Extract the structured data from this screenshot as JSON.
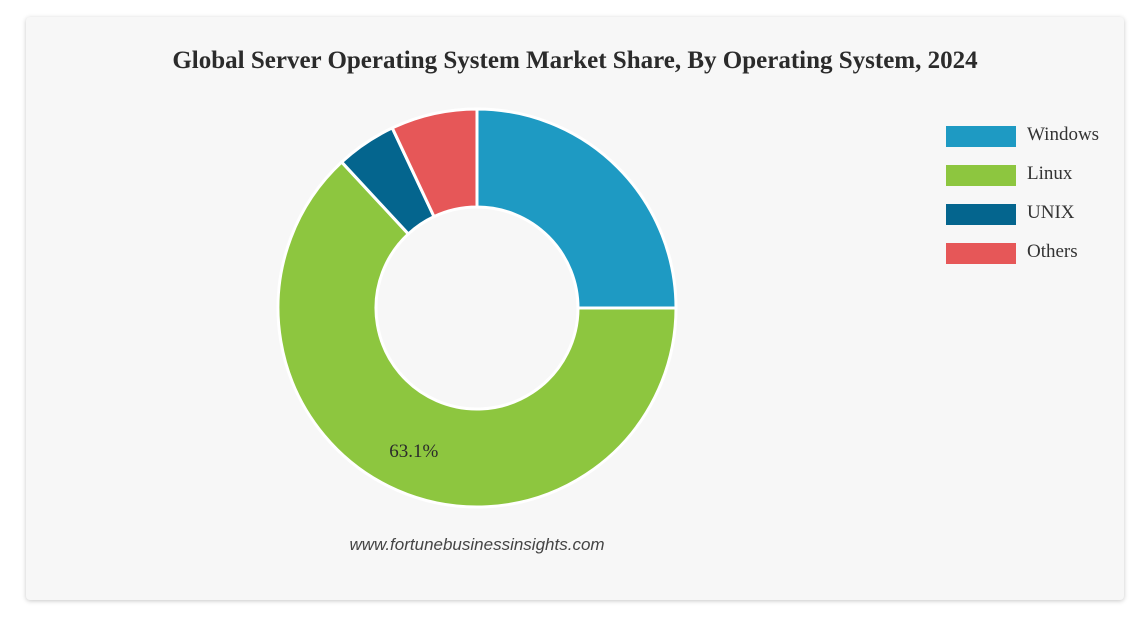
{
  "title": "Global Server Operating System Market Share, By Operating System, 2024",
  "source": "www.fortunebusinessinsights.com",
  "chart_data": {
    "type": "pie",
    "variant": "donut",
    "title": "Global Server Operating System Market Share, By Operating System, 2024",
    "categories": [
      "Windows",
      "Linux",
      "UNIX",
      "Others"
    ],
    "values": [
      25.0,
      63.1,
      4.9,
      7.0
    ],
    "colors": [
      "#1e9ac3",
      "#8dc63f",
      "#04658e",
      "#e65758"
    ],
    "data_labels": [
      "",
      "63.1%",
      "",
      ""
    ],
    "legend_position": "top-right",
    "unit": "%"
  }
}
